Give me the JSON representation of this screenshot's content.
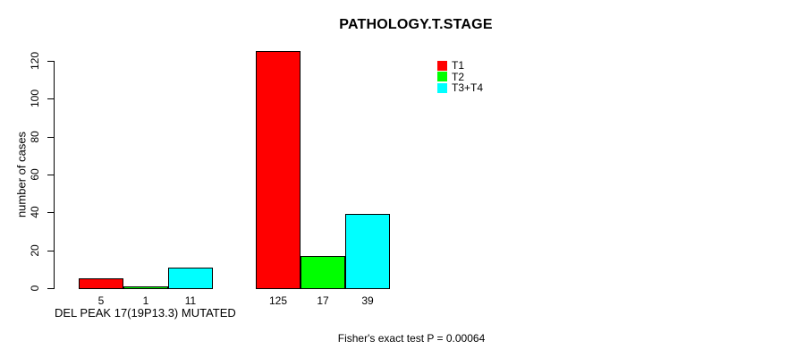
{
  "chart_data": {
    "type": "bar",
    "title": "PATHOLOGY.T.STAGE",
    "ylabel": "number of cases",
    "xlabel": "DEL PEAK 17(19P13.3) MUTATED",
    "annotation": "Fisher's exact test P = 0.00064",
    "y_ticks": [
      0,
      20,
      40,
      60,
      80,
      100,
      120
    ],
    "ylim": [
      0,
      130
    ],
    "grid": "off",
    "legend_position": "inside-top-right",
    "series": [
      {
        "name": "T1",
        "color": "#ff0000"
      },
      {
        "name": "T2",
        "color": "#00ff00"
      },
      {
        "name": "T3+T4",
        "color": "#00ffff"
      }
    ],
    "groups": [
      {
        "label": "DEL PEAK 17(19P13.3) MUTATED",
        "values": [
          5,
          1,
          11
        ]
      },
      {
        "label": "",
        "values": [
          125,
          17,
          39
        ]
      }
    ],
    "colors": {
      "bar_border": "#000000",
      "axis": "#000000",
      "text": "#000000",
      "background": "#ffffff"
    }
  }
}
